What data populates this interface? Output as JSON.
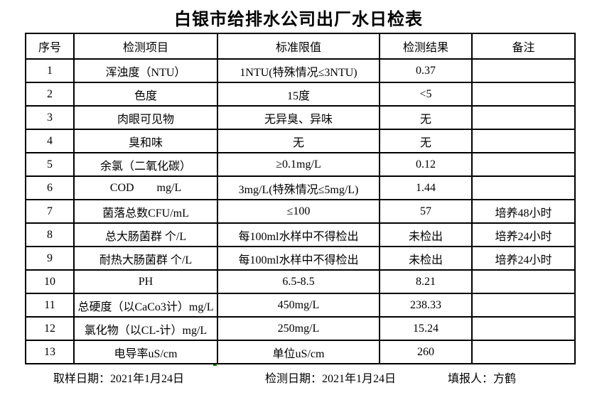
{
  "title": "白银市给排水公司出厂水日检表",
  "table": {
    "headers": {
      "no": "序号",
      "item": "检测项目",
      "standard": "标准限值",
      "result": "检测结果",
      "remark": "备注"
    },
    "rows": [
      {
        "no": "1",
        "item": "浑浊度（NTU）",
        "standard": "1NTU(特殊情况≤3NTU)",
        "result": "0.37",
        "remark": ""
      },
      {
        "no": "2",
        "item": "色度",
        "standard": "15度",
        "result": "<5",
        "remark": ""
      },
      {
        "no": "3",
        "item": "肉眼可见物",
        "standard": "无异臭、异味",
        "result": "无",
        "remark": ""
      },
      {
        "no": "4",
        "item": "臭和味",
        "standard": "无",
        "result": "无",
        "remark": ""
      },
      {
        "no": "5",
        "item": "余氯（二氧化碳）",
        "standard": "≥0.1mg/L",
        "result": "0.12",
        "remark": ""
      },
      {
        "no": "6",
        "item": "COD        mg/L",
        "standard": "3mg/L(特殊情况≤5mg/L)",
        "result": "1.44",
        "remark": ""
      },
      {
        "no": "7",
        "item": "菌落总数CFU/mL",
        "standard": "≤100",
        "result": "57",
        "remark": "培养48小时"
      },
      {
        "no": "8",
        "item": "总大肠菌群 个/L",
        "standard": "每100ml水样中不得检出",
        "result": "未检出",
        "remark": "培养24小时"
      },
      {
        "no": "9",
        "item": "耐热大肠菌群 个/L",
        "standard": "每100ml水样中不得检出",
        "result": "未检出",
        "remark": "培养24小时"
      },
      {
        "no": "10",
        "item": "PH",
        "standard": "6.5-8.5",
        "result": "8.21",
        "remark": ""
      },
      {
        "no": "11",
        "item": "总硬度（以CaCo3计）mg/L",
        "standard": "450mg/L",
        "result": "238.33",
        "remark": ""
      },
      {
        "no": "12",
        "item": "氯化物（以CL-计）mg/L",
        "standard": "250mg/L",
        "result": "15.24",
        "remark": ""
      },
      {
        "no": "13",
        "item": "电导率uS/cm",
        "standard": "单位uS/cm",
        "result": "260",
        "remark": ""
      }
    ]
  },
  "footer": {
    "sampling_date": "取样日期：2021年1月24日",
    "test_date": "检测日期：2021年1月24日",
    "reporter": "填报人：方鹤"
  },
  "colors": {
    "text": "#000000",
    "border": "#000000",
    "background": "#ffffff",
    "error_indicator": "#008000"
  }
}
